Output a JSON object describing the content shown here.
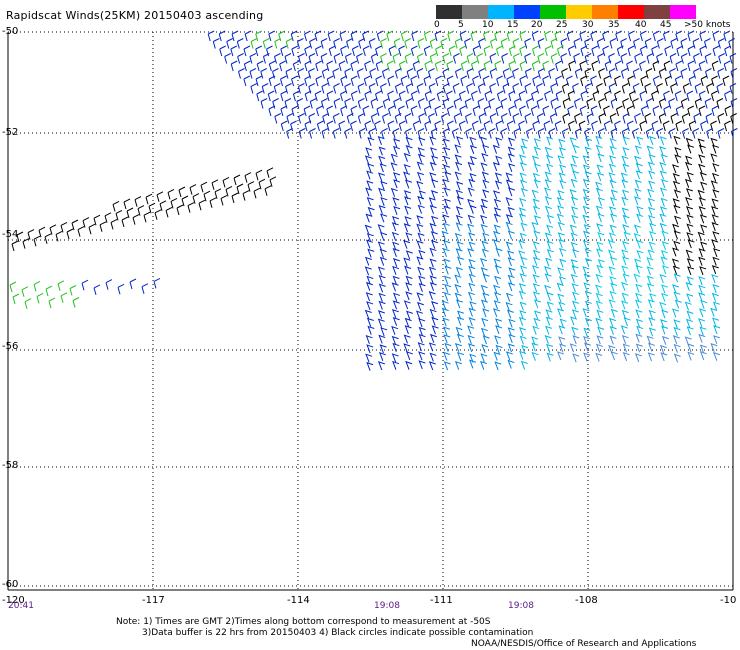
{
  "title": "Rapidscat Winds(25KM) 20150403 ascending",
  "legend": {
    "labels": [
      "0",
      "5",
      "10",
      "15",
      "20",
      "25",
      "30",
      "35",
      "40",
      "45",
      ">50 knots"
    ],
    "colors": [
      "#303030",
      "#808080",
      "#00b4ff",
      "#0040ff",
      "#00c000",
      "#ffcc00",
      "#ff8000",
      "#ff0000",
      "#804040",
      "#ff00ff",
      "#400080"
    ]
  },
  "axes": {
    "lat_labels": [
      "-50",
      "-52",
      "-54",
      "-56",
      "-58",
      "-60"
    ],
    "lon_labels": [
      "-120",
      "-117",
      "-114",
      "-111",
      "-108",
      "-10"
    ]
  },
  "times": {
    "left": "20:41",
    "middle": "19:08",
    "right": "19:08"
  },
  "notes": {
    "line1": "Note: 1) Times are GMT 2)Times along bottom correspond to measurement at -50S",
    "line2": "3)Data buffer is 22 hrs from 20150403 4) Black circles indicate possible contamination",
    "credit": "NOAA/NESDIS/Office of Research and Applications"
  }
}
